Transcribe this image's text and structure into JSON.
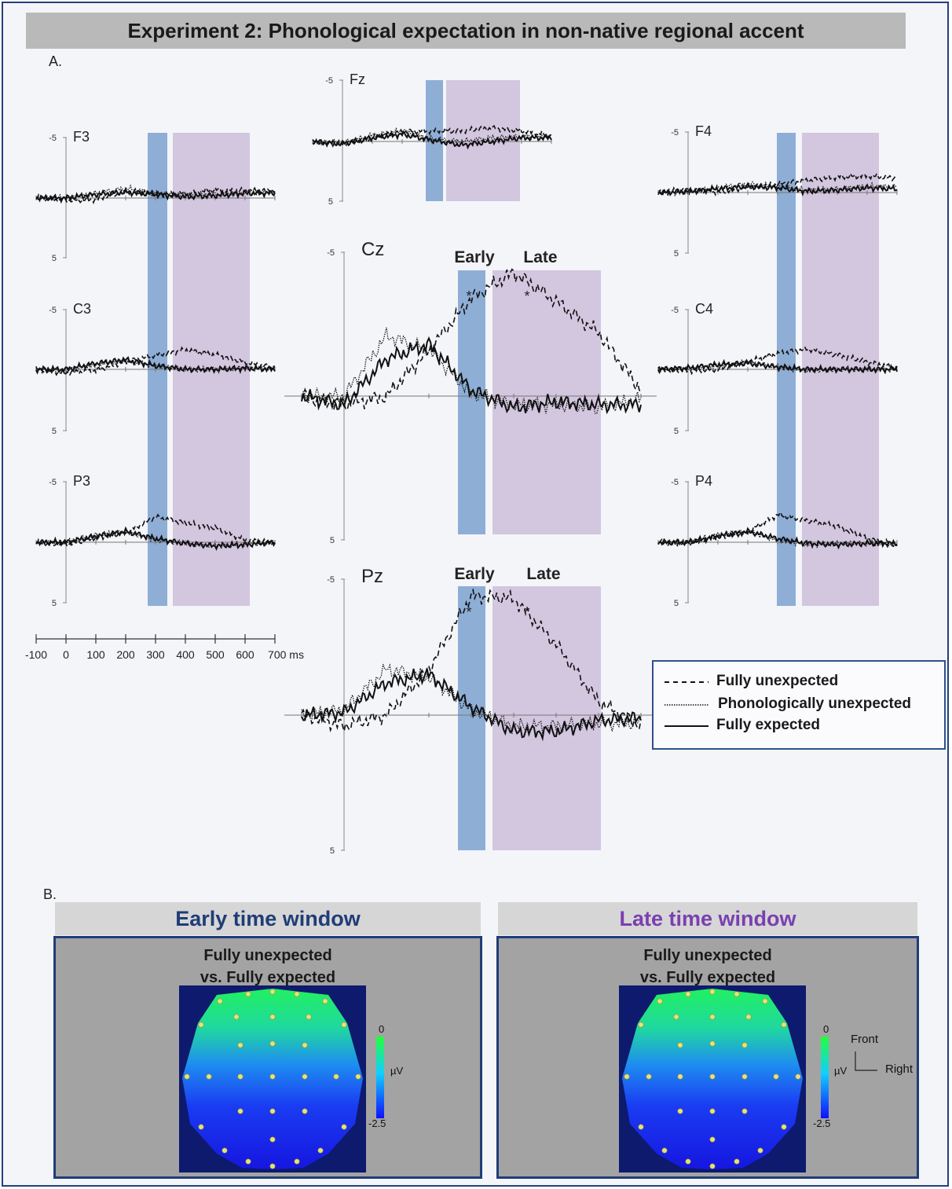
{
  "title": "Experiment 2: Phonological expectation in non-native regional accent",
  "panel_a_label": "A.",
  "panel_b_label": "B.",
  "colors": {
    "early_window": "#8eaed6",
    "late_window": "#d3c6df",
    "frame_border": "#243f7a",
    "early_title": "#1f3d77",
    "late_title": "#7a3fb0"
  },
  "chart_data": {
    "type": "line",
    "x_axis": {
      "unit": "ms",
      "ticks": [
        -100,
        0,
        100,
        200,
        300,
        400,
        500,
        600,
        700
      ],
      "tick_labels": [
        "-100",
        "0",
        "100",
        "200",
        "300",
        "400",
        "500",
        "600",
        "700 ms"
      ]
    },
    "y_axis": {
      "tick_labels": [
        "-5",
        "5"
      ],
      "negative_up": true,
      "ylim": [
        -5,
        5
      ]
    },
    "time_windows": [
      {
        "name": "Early",
        "start_ms": 280,
        "end_ms": 340
      },
      {
        "name": "Late",
        "start_ms": 355,
        "end_ms": 610
      }
    ],
    "series_names": [
      "Fully unexpected",
      "Phonologically unexpected",
      "Fully expected"
    ],
    "electrodes": [
      {
        "name": "F3",
        "unexpected": [
          0,
          0.2,
          0.1,
          -0.6,
          -0.3,
          -0.4,
          -0.7,
          -0.6,
          -0.6
        ],
        "phon": [
          0,
          0,
          -0.4,
          -0.8,
          -0.4,
          -0.2,
          -0.3,
          -0.4,
          -0.5
        ],
        "expected": [
          0,
          0,
          -0.3,
          -0.5,
          -0.3,
          -0.1,
          -0.2,
          -0.4,
          -0.4
        ]
      },
      {
        "name": "Fz",
        "unexpected": [
          0,
          0.2,
          -0.3,
          -0.8,
          -0.9,
          -0.9,
          -1.1,
          -0.9,
          -0.5
        ],
        "phon": [
          0,
          0.1,
          -0.5,
          -0.9,
          -0.2,
          0,
          -0.3,
          -0.4,
          -0.4
        ],
        "expected": [
          0,
          0.2,
          -0.3,
          -0.6,
          -0.1,
          0.3,
          0,
          -0.3,
          -0.3
        ]
      },
      {
        "name": "F4",
        "unexpected": [
          0,
          -0.2,
          0,
          -0.5,
          -0.7,
          -1,
          -1.3,
          -1.4,
          -1.2
        ],
        "phon": [
          0,
          0,
          -0.4,
          -0.7,
          -0.5,
          -0.2,
          -0.3,
          -0.5,
          -0.5
        ],
        "expected": [
          0,
          -0.1,
          -0.3,
          -0.5,
          -0.4,
          -0.1,
          -0.2,
          -0.4,
          -0.3
        ]
      },
      {
        "name": "C3",
        "unexpected": [
          0,
          0.3,
          0.1,
          -0.6,
          -1.2,
          -1.6,
          -1.2,
          -0.6,
          -0.1
        ],
        "phon": [
          0,
          0.1,
          -0.4,
          -0.7,
          -0.3,
          0,
          0,
          -0.1,
          -0.1
        ],
        "expected": [
          0,
          0,
          -0.5,
          -0.8,
          -0.3,
          0,
          0,
          -0.1,
          0
        ]
      },
      {
        "name": "Cz",
        "unexpected": [
          0,
          0.3,
          0,
          -1.6,
          -3.4,
          -4.3,
          -3.3,
          -2.2,
          -0.2
        ],
        "phon": [
          0,
          0,
          -2.1,
          -1.6,
          -0.1,
          0.3,
          0.3,
          0.4,
          0.1
        ],
        "expected": [
          0,
          0.3,
          -1.3,
          -1.8,
          -0.2,
          0.4,
          0.2,
          0.3,
          0.3
        ]
      },
      {
        "name": "C4",
        "unexpected": [
          0,
          0.1,
          0,
          -0.6,
          -1.3,
          -1.7,
          -1.2,
          -0.6,
          -0.1
        ],
        "phon": [
          0,
          0,
          -0.3,
          -0.6,
          -0.2,
          0.1,
          0,
          0,
          0
        ],
        "expected": [
          0,
          -0.1,
          -0.4,
          -0.5,
          -0.2,
          0,
          0,
          0,
          0
        ]
      },
      {
        "name": "P3",
        "unexpected": [
          0,
          0.2,
          -0.4,
          -0.8,
          -2.1,
          -1.6,
          -1.2,
          -0.2,
          0.1
        ],
        "phon": [
          0,
          0,
          -0.6,
          -0.9,
          -0.2,
          0.1,
          0.3,
          0.2,
          0
        ],
        "expected": [
          0,
          0,
          -0.5,
          -0.9,
          -0.3,
          0.1,
          0.3,
          0.2,
          0
        ]
      },
      {
        "name": "Pz",
        "unexpected": [
          0,
          0.4,
          0,
          -1.7,
          -4.4,
          -4.3,
          -2.6,
          -0.5,
          0.4
        ],
        "phon": [
          0,
          -0.2,
          -1.7,
          -1.4,
          -0.2,
          0.4,
          0.4,
          0.3,
          0.3
        ],
        "expected": [
          0,
          -0.1,
          -1.2,
          -1.5,
          -0.3,
          0.6,
          0.6,
          0.2,
          0.1
        ]
      },
      {
        "name": "P4",
        "unexpected": [
          0,
          0.1,
          -0.4,
          -0.9,
          -2.3,
          -1.8,
          -1.3,
          -0.3,
          0.2
        ],
        "phon": [
          0,
          0,
          -0.6,
          -0.9,
          -0.2,
          0.2,
          0.1,
          0.1,
          0.2
        ],
        "expected": [
          0,
          0,
          -0.5,
          -0.9,
          -0.3,
          0.1,
          0.2,
          0.1,
          0.1
        ]
      }
    ],
    "window_labels": {
      "early": "Early",
      "late": "Late"
    },
    "significance_mark": "*"
  },
  "legend": {
    "items": [
      {
        "label": "Fully unexpected",
        "style": "dashed"
      },
      {
        "label": "Phonologically unexpected",
        "style": "dotted"
      },
      {
        "label": "Fully expected",
        "style": "solid"
      }
    ]
  },
  "topomaps": {
    "early": {
      "header": "Early time window",
      "caption_line1": "Fully unexpected",
      "caption_line2": "vs. Fully expected"
    },
    "late": {
      "header": "Late time window",
      "caption_line1": "Fully unexpected",
      "caption_line2": "vs. Fully expected"
    },
    "colorbar": {
      "max": "0",
      "min": "-2.5",
      "unit": "µV"
    },
    "orientation": {
      "front": "Front",
      "right": "Right"
    }
  }
}
